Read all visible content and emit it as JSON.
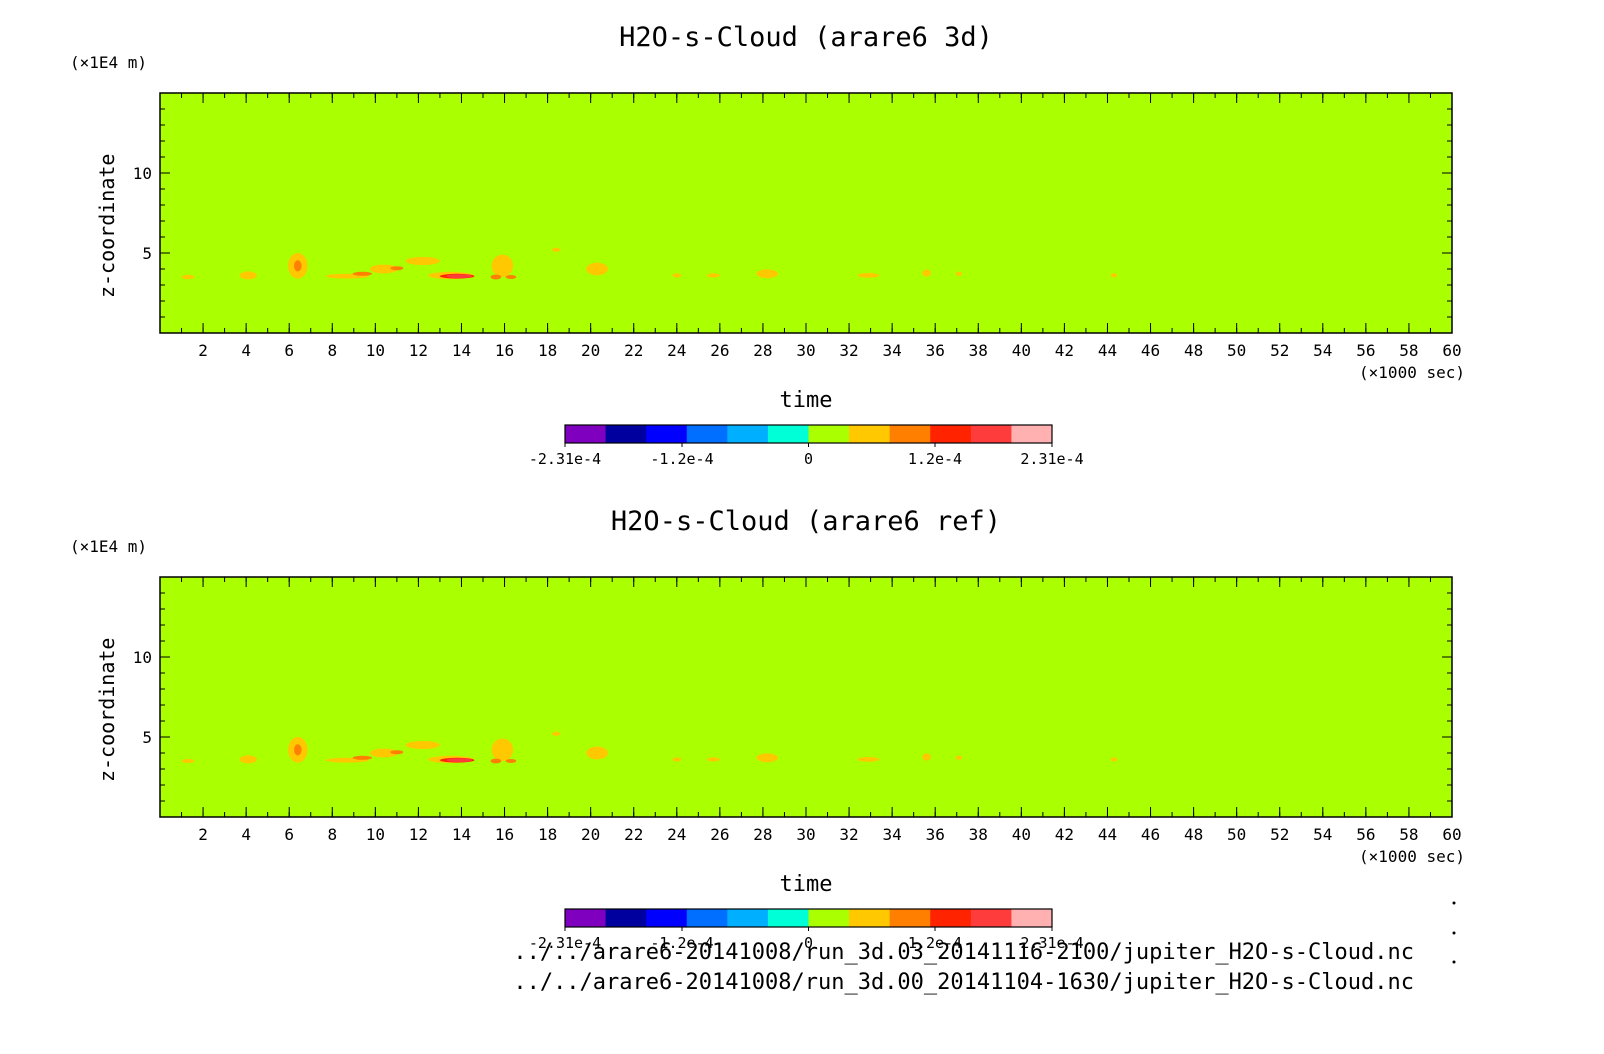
{
  "chart_data": [
    {
      "type": "heatmap",
      "title": "H2O-s-Cloud (arare6 3d)",
      "ylabel": "z-coordinate",
      "yunit": "(x1E4 m)",
      "xlabel": "time",
      "xunit": "(x1000 sec)",
      "xlim": [
        0,
        60
      ],
      "ylim": [
        0,
        15
      ],
      "xticks": [
        2,
        4,
        6,
        8,
        10,
        12,
        14,
        16,
        18,
        20,
        22,
        24,
        26,
        28,
        30,
        32,
        34,
        36,
        38,
        40,
        42,
        44,
        46,
        48,
        50,
        52,
        54,
        56,
        58,
        60
      ],
      "yticks": [
        5,
        10
      ],
      "background_level": "0",
      "features": [
        {
          "x": 1.3,
          "y": 3.5,
          "w": 0.6,
          "h": 0.25,
          "level": 1
        },
        {
          "x": 4.1,
          "y": 3.6,
          "w": 0.8,
          "h": 0.5,
          "level": 1
        },
        {
          "x": 6.4,
          "y": 4.2,
          "w": 0.9,
          "h": 1.6,
          "level": 1
        },
        {
          "x": 6.4,
          "y": 4.2,
          "w": 0.35,
          "h": 0.7,
          "level": 2
        },
        {
          "x": 8.7,
          "y": 3.55,
          "w": 2.0,
          "h": 0.3,
          "level": 1
        },
        {
          "x": 9.4,
          "y": 3.7,
          "w": 0.9,
          "h": 0.25,
          "level": 2
        },
        {
          "x": 10.4,
          "y": 4.0,
          "w": 1.3,
          "h": 0.55,
          "level": 1
        },
        {
          "x": 11.0,
          "y": 4.05,
          "w": 0.6,
          "h": 0.25,
          "level": 2
        },
        {
          "x": 12.2,
          "y": 4.5,
          "w": 1.6,
          "h": 0.5,
          "level": 1
        },
        {
          "x": 13.5,
          "y": 3.6,
          "w": 2.1,
          "h": 0.45,
          "level": 1
        },
        {
          "x": 13.8,
          "y": 3.55,
          "w": 1.6,
          "h": 0.3,
          "level": 3
        },
        {
          "x": 13.9,
          "y": 3.55,
          "w": 1.2,
          "h": 0.15,
          "level": 4
        },
        {
          "x": 15.9,
          "y": 4.2,
          "w": 1.0,
          "h": 1.4,
          "level": 1
        },
        {
          "x": 15.6,
          "y": 3.5,
          "w": 0.5,
          "h": 0.3,
          "level": 2
        },
        {
          "x": 16.3,
          "y": 3.5,
          "w": 0.5,
          "h": 0.25,
          "level": 2
        },
        {
          "x": 18.4,
          "y": 5.2,
          "w": 0.4,
          "h": 0.25,
          "level": 1
        },
        {
          "x": 20.3,
          "y": 4.0,
          "w": 1.0,
          "h": 0.8,
          "level": 1
        },
        {
          "x": 24.0,
          "y": 3.6,
          "w": 0.4,
          "h": 0.2,
          "level": 1
        },
        {
          "x": 25.7,
          "y": 3.6,
          "w": 0.6,
          "h": 0.2,
          "level": 1
        },
        {
          "x": 28.2,
          "y": 3.7,
          "w": 1.0,
          "h": 0.55,
          "level": 1
        },
        {
          "x": 32.9,
          "y": 3.6,
          "w": 1.0,
          "h": 0.3,
          "level": 1
        },
        {
          "x": 35.6,
          "y": 3.75,
          "w": 0.4,
          "h": 0.45,
          "level": 1
        },
        {
          "x": 37.1,
          "y": 3.7,
          "w": 0.3,
          "h": 0.2,
          "level": 1
        },
        {
          "x": 44.3,
          "y": 3.6,
          "w": 0.3,
          "h": 0.2,
          "level": 1
        }
      ],
      "colorbar": {
        "colors": [
          "#7f00bf",
          "#00009f",
          "#0000ff",
          "#006fff",
          "#00afff",
          "#00ffd7",
          "#aaff00",
          "#ffc800",
          "#ff7f00",
          "#ff2300",
          "#ff3c3c",
          "#ffb0b0"
        ],
        "tick_labels": [
          "-2.31e-4",
          "-1.2e-4",
          "0",
          "1.2e-4",
          "2.31e-4"
        ],
        "tick_values": [
          -0.000231,
          -0.00012,
          0,
          0.00012,
          0.000231
        ],
        "range": [
          -0.000231,
          0.000231
        ]
      }
    },
    {
      "type": "heatmap",
      "title": "H2O-s-Cloud (arare6 ref)",
      "ylabel": "z-coordinate",
      "yunit": "(x1E4 m)",
      "xlabel": "time",
      "xunit": "(x1000 sec)",
      "xlim": [
        0,
        60
      ],
      "ylim": [
        0,
        15
      ],
      "xticks": [
        2,
        4,
        6,
        8,
        10,
        12,
        14,
        16,
        18,
        20,
        22,
        24,
        26,
        28,
        30,
        32,
        34,
        36,
        38,
        40,
        42,
        44,
        46,
        48,
        50,
        52,
        54,
        56,
        58,
        60
      ],
      "yticks": [
        5,
        10
      ],
      "background_level": "0",
      "features": [
        {
          "x": 1.3,
          "y": 3.5,
          "w": 0.6,
          "h": 0.25,
          "level": 1
        },
        {
          "x": 4.1,
          "y": 3.6,
          "w": 0.8,
          "h": 0.5,
          "level": 1
        },
        {
          "x": 6.4,
          "y": 4.2,
          "w": 0.9,
          "h": 1.6,
          "level": 1
        },
        {
          "x": 6.4,
          "y": 4.2,
          "w": 0.35,
          "h": 0.7,
          "level": 2
        },
        {
          "x": 8.7,
          "y": 3.55,
          "w": 2.0,
          "h": 0.3,
          "level": 1
        },
        {
          "x": 9.4,
          "y": 3.7,
          "w": 0.9,
          "h": 0.25,
          "level": 2
        },
        {
          "x": 10.4,
          "y": 4.0,
          "w": 1.3,
          "h": 0.55,
          "level": 1
        },
        {
          "x": 11.0,
          "y": 4.05,
          "w": 0.6,
          "h": 0.25,
          "level": 2
        },
        {
          "x": 12.2,
          "y": 4.5,
          "w": 1.6,
          "h": 0.5,
          "level": 1
        },
        {
          "x": 13.5,
          "y": 3.6,
          "w": 2.1,
          "h": 0.45,
          "level": 1
        },
        {
          "x": 13.8,
          "y": 3.55,
          "w": 1.6,
          "h": 0.3,
          "level": 3
        },
        {
          "x": 13.9,
          "y": 3.55,
          "w": 1.2,
          "h": 0.15,
          "level": 4
        },
        {
          "x": 15.9,
          "y": 4.2,
          "w": 1.0,
          "h": 1.4,
          "level": 1
        },
        {
          "x": 15.6,
          "y": 3.5,
          "w": 0.5,
          "h": 0.3,
          "level": 2
        },
        {
          "x": 16.3,
          "y": 3.5,
          "w": 0.5,
          "h": 0.25,
          "level": 2
        },
        {
          "x": 18.4,
          "y": 5.2,
          "w": 0.4,
          "h": 0.25,
          "level": 1
        },
        {
          "x": 20.3,
          "y": 4.0,
          "w": 1.0,
          "h": 0.8,
          "level": 1
        },
        {
          "x": 24.0,
          "y": 3.6,
          "w": 0.4,
          "h": 0.2,
          "level": 1
        },
        {
          "x": 25.7,
          "y": 3.6,
          "w": 0.6,
          "h": 0.2,
          "level": 1
        },
        {
          "x": 28.2,
          "y": 3.7,
          "w": 1.0,
          "h": 0.55,
          "level": 1
        },
        {
          "x": 32.9,
          "y": 3.6,
          "w": 1.0,
          "h": 0.3,
          "level": 1
        },
        {
          "x": 35.6,
          "y": 3.75,
          "w": 0.4,
          "h": 0.45,
          "level": 1
        },
        {
          "x": 37.1,
          "y": 3.7,
          "w": 0.3,
          "h": 0.2,
          "level": 1
        },
        {
          "x": 44.3,
          "y": 3.6,
          "w": 0.3,
          "h": 0.2,
          "level": 1
        }
      ],
      "colorbar": {
        "colors": [
          "#7f00bf",
          "#00009f",
          "#0000ff",
          "#006fff",
          "#00afff",
          "#00ffd7",
          "#aaff00",
          "#ffc800",
          "#ff7f00",
          "#ff2300",
          "#ff3c3c",
          "#ffb0b0"
        ],
        "tick_labels": [
          "-2.31e-4",
          "-1.2e-4",
          "0",
          "1.2e-4",
          "2.31e-4"
        ],
        "tick_values": [
          -0.000231,
          -0.00012,
          0,
          0.00012,
          0.000231
        ],
        "range": [
          -0.000231,
          0.000231
        ]
      }
    }
  ],
  "files": [
    "../../arare6-20141008/run_3d.03_20141116-2100/jupiter_H2O-s-Cloud.nc",
    "../../arare6-20141008/run_3d.00_20141104-1630/jupiter_H2O-s-Cloud.nc"
  ],
  "colors": {
    "background_field": "#aaff00",
    "level_1": "#ffc800",
    "level_2": "#ff7f00",
    "level_3": "#ff2300",
    "level_4": "#ff3c3c"
  }
}
